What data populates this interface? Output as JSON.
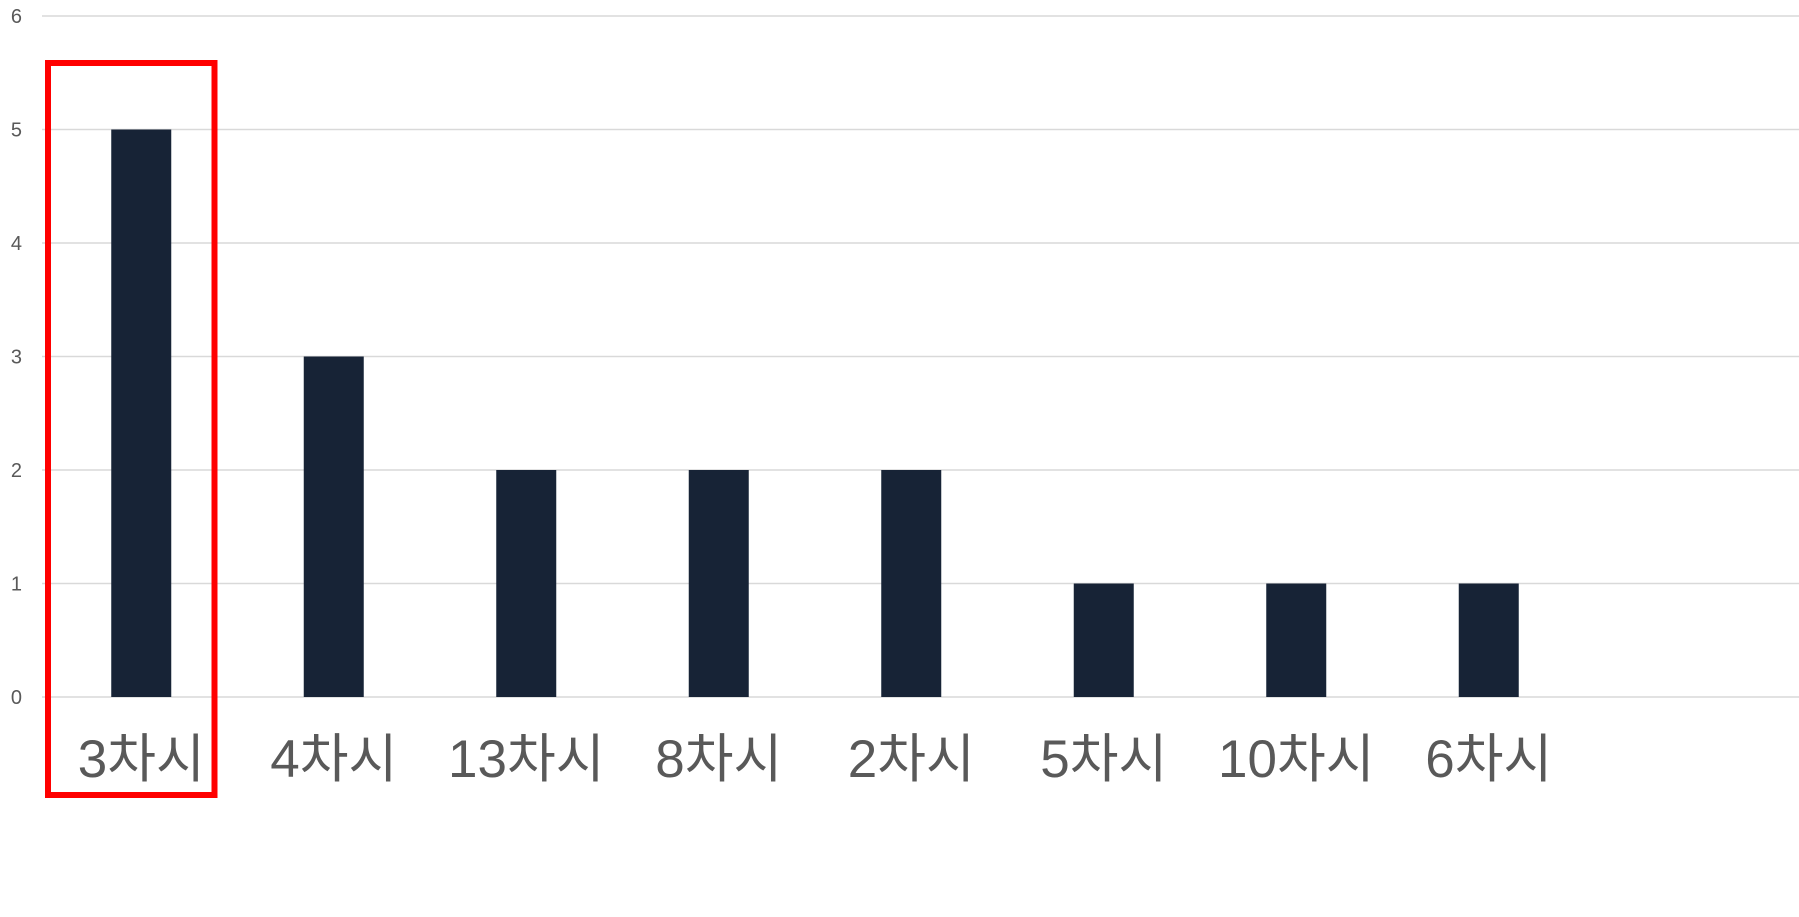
{
  "chart_data": {
    "type": "bar",
    "categories": [
      "3차시",
      "4차시",
      "13차시",
      "8차시",
      "2차시",
      "5차시",
      "10차시",
      "6차시"
    ],
    "values": [
      5,
      3,
      2,
      2,
      2,
      1,
      1,
      1
    ],
    "title": "",
    "xlabel": "",
    "ylabel": "",
    "ylim": [
      0,
      6
    ],
    "yticks": [
      0,
      1,
      2,
      3,
      4,
      5,
      6
    ],
    "grid": true,
    "legend": "none",
    "highlighted_category": "3차시"
  },
  "colors": {
    "bar": "#172336",
    "grid": "#d9d9d9",
    "tick_text": "#595959",
    "highlight": "#ff0000"
  }
}
